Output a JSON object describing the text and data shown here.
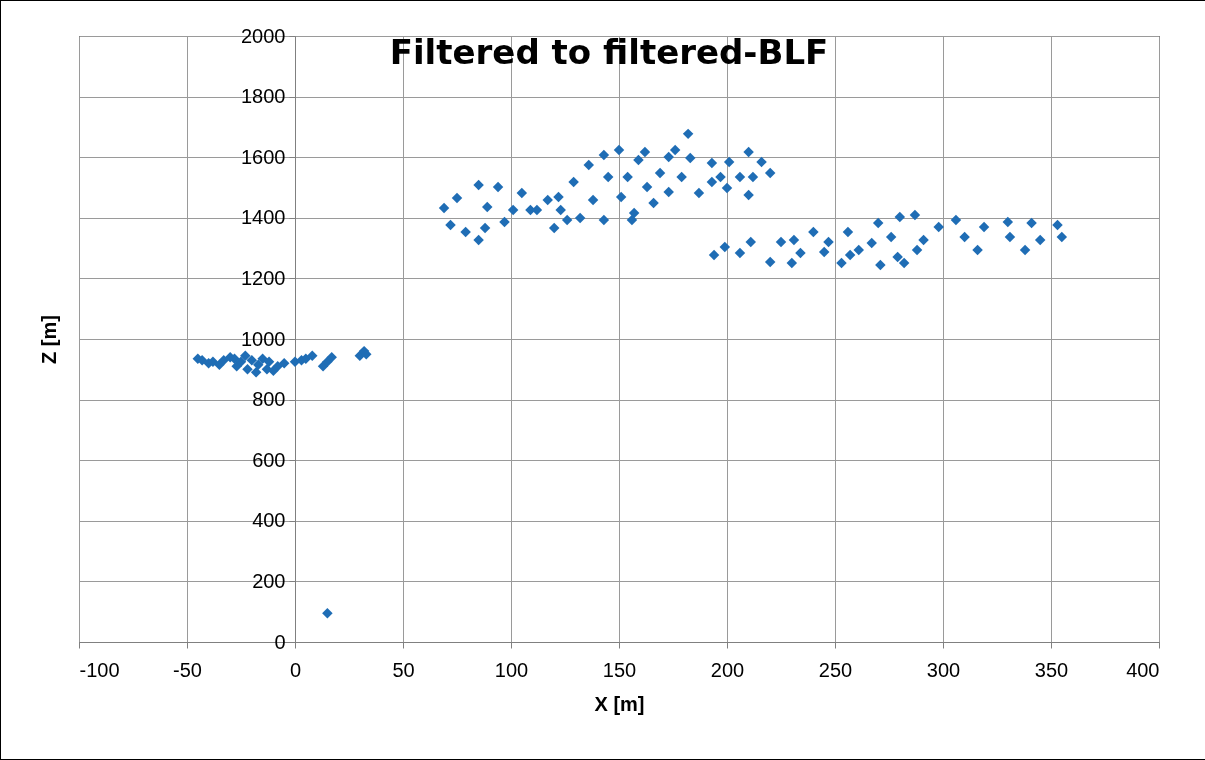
{
  "chart_data": {
    "type": "scatter",
    "title": "Filtered to filtered-BLF",
    "xlabel": "X [m]",
    "ylabel": "Z [m]",
    "xlim": [
      -100,
      400
    ],
    "xticks": [
      -100,
      -50,
      0,
      50,
      100,
      150,
      200,
      250,
      300,
      350,
      400
    ],
    "ylim": [
      0,
      2000
    ],
    "yticks": [
      0,
      200,
      400,
      600,
      800,
      1000,
      1200,
      1400,
      1600,
      1800,
      2000
    ],
    "grid": true,
    "marker": "diamond",
    "series": [
      {
        "color": "#1f6db5",
        "x": [
          -45,
          -43,
          -40,
          -38,
          -35,
          -33,
          -30,
          -28,
          -27,
          -25,
          -23,
          -22,
          -20,
          -18,
          -17,
          -15,
          -13,
          -12,
          -10,
          -8,
          -5,
          0,
          3,
          5,
          8,
          13,
          15,
          17,
          30,
          32,
          33,
          15,
          69,
          72,
          75,
          79,
          85,
          85,
          88,
          94,
          97,
          105,
          109,
          117,
          120,
          122,
          126,
          132,
          129,
          136,
          143,
          150,
          143,
          157,
          159,
          162,
          166,
          169,
          173,
          176,
          182,
          173,
          183,
          187,
          193,
          201,
          200,
          210,
          210,
          216,
          220,
          212,
          193,
          179,
          89,
          101,
          112,
          123,
          138,
          151,
          145,
          154,
          163,
          197,
          206,
          156,
          194,
          199,
          211,
          220,
          225,
          231,
          230,
          240,
          247,
          253,
          256,
          261,
          270,
          271,
          280,
          287,
          282,
          291,
          298,
          306,
          316,
          319,
          330,
          338,
          341,
          353,
          355,
          345,
          331,
          310,
          276,
          267,
          257,
          245,
          234,
          206,
          288,
          279
        ],
        "values": [
          935,
          930,
          920,
          925,
          915,
          930,
          940,
          935,
          910,
          925,
          945,
          900,
          930,
          890,
          915,
          935,
          900,
          925,
          895,
          910,
          920,
          925,
          930,
          935,
          945,
          910,
          925,
          940,
          945,
          960,
          950,
          95,
          1432,
          1376,
          1465,
          1353,
          1508,
          1327,
          1366,
          1502,
          1386,
          1482,
          1426,
          1459,
          1366,
          1469,
          1393,
          1399,
          1518,
          1574,
          1607,
          1624,
          1393,
          1416,
          1591,
          1617,
          1449,
          1548,
          1601,
          1624,
          1677,
          1485,
          1597,
          1482,
          1581,
          1584,
          1498,
          1617,
          1475,
          1584,
          1548,
          1535,
          1518,
          1535,
          1436,
          1426,
          1426,
          1426,
          1459,
          1469,
          1535,
          1535,
          1502,
          1535,
          1535,
          1393,
          1277,
          1304,
          1320,
          1254,
          1320,
          1327,
          1251,
          1353,
          1320,
          1251,
          1353,
          1294,
          1383,
          1244,
          1403,
          1409,
          1251,
          1327,
          1370,
          1393,
          1294,
          1370,
          1386,
          1294,
          1383,
          1376,
          1337,
          1327,
          1337,
          1337,
          1337,
          1317,
          1277,
          1287,
          1284,
          1284,
          1294,
          1271
        ]
      }
    ]
  }
}
